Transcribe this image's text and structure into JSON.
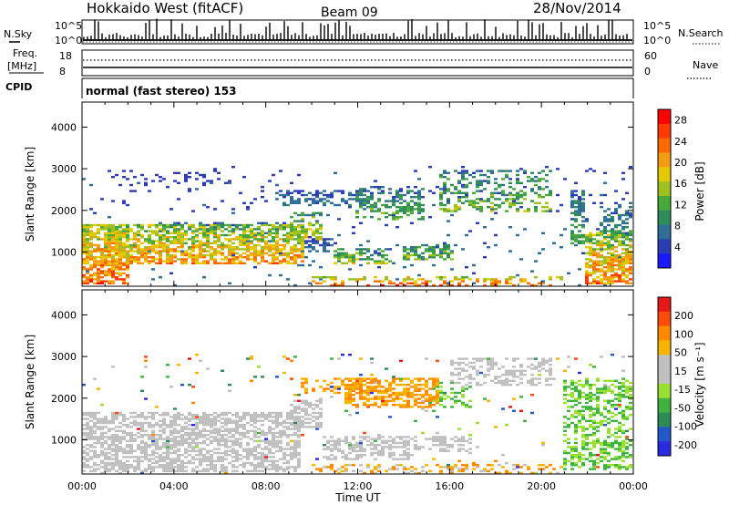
{
  "header": {
    "site": "Hokkaido West (fitACF)",
    "beam": "Beam 09",
    "date": "28/Nov/2014"
  },
  "strip": {
    "nsky_label": "N.Sky",
    "nsky_ticks": [
      "10^5",
      "10^0"
    ],
    "nsearch_label": "N.Search",
    "nsearch_ticks": [
      "10^5",
      "10^0"
    ],
    "freq_label_1": "Freq.",
    "freq_label_2": "[MHz]",
    "freq_ticks": [
      "18",
      "8"
    ],
    "nave_label": "Nave",
    "nave_ticks": [
      "60",
      "0"
    ],
    "cpid_label": "CPID",
    "cpid_text": "normal (fast stereo) 153"
  },
  "colors": {
    "power": [
      "#1a1aff",
      "#2c3cb4",
      "#2f6e96",
      "#2f8c5a",
      "#49a83a",
      "#a0c020",
      "#e6c800",
      "#f39c12",
      "#ff6a00",
      "#ff3a00",
      "#ff0000"
    ],
    "velocity": [
      "#e61919",
      "#ff4b0a",
      "#ff8a00",
      "#f7b500",
      "#c0c0c0",
      "#c0c0c0",
      "#99e033",
      "#3fb33f",
      "#2e8b57",
      "#2457c8",
      "#2a2ae0"
    ]
  },
  "chart_data": [
    {
      "type": "heatmap",
      "panel": "power",
      "xlabel": "Time UT",
      "ylabel": "Slant Range [km]",
      "x_range_hours": [
        0,
        24
      ],
      "x_ticks": [
        "00:00",
        "04:00",
        "08:00",
        "12:00",
        "16:00",
        "20:00",
        "00:00"
      ],
      "ylim": [
        180,
        4600
      ],
      "y_ticks": [
        1000,
        2000,
        3000,
        4000
      ],
      "colorbar_label": "Power [dB]",
      "colorbar_ticks": [
        4,
        8,
        12,
        16,
        20,
        24,
        28
      ],
      "colorbar_range": [
        0,
        30
      ],
      "regions": [
        {
          "t0": 0.0,
          "t1": 2.0,
          "r0": 250,
          "r1": 1700,
          "v0": 10,
          "v1": 28,
          "d": 0.7
        },
        {
          "t0": 1.0,
          "t1": 9.7,
          "r0": 700,
          "r1": 1700,
          "v0": 8,
          "v1": 26,
          "d": 0.65
        },
        {
          "t0": 3.0,
          "t1": 9.5,
          "r0": 1500,
          "r1": 1750,
          "v0": 3,
          "v1": 12,
          "d": 0.35
        },
        {
          "t0": 9.0,
          "t1": 10.5,
          "r0": 1300,
          "r1": 2000,
          "v0": 5,
          "v1": 22,
          "d": 0.5
        },
        {
          "t0": 9.5,
          "t1": 11.0,
          "r0": 1000,
          "r1": 1400,
          "v0": 3,
          "v1": 8,
          "d": 0.5
        },
        {
          "t0": 11.0,
          "t1": 13.5,
          "r0": 700,
          "r1": 1100,
          "v0": 3,
          "v1": 20,
          "d": 0.55
        },
        {
          "t0": 12.0,
          "t1": 15.0,
          "r0": 1800,
          "r1": 2600,
          "v0": 3,
          "v1": 16,
          "d": 0.45
        },
        {
          "t0": 14.0,
          "t1": 16.2,
          "r0": 800,
          "r1": 1200,
          "v0": 4,
          "v1": 18,
          "d": 0.5
        },
        {
          "t0": 8.5,
          "t1": 12.5,
          "r0": 2100,
          "r1": 2500,
          "v0": 3,
          "v1": 10,
          "d": 0.4
        },
        {
          "t0": 15.5,
          "t1": 20.5,
          "r0": 2000,
          "r1": 3000,
          "v0": 3,
          "v1": 18,
          "d": 0.35
        },
        {
          "t0": 1.0,
          "t1": 6.5,
          "r0": 2600,
          "r1": 3000,
          "v0": 3,
          "v1": 6,
          "d": 0.18
        },
        {
          "t0": 10.0,
          "t1": 21.0,
          "r0": 200,
          "r1": 400,
          "v0": 12,
          "v1": 28,
          "d": 0.35
        },
        {
          "t0": 21.3,
          "t1": 22.0,
          "r0": 1200,
          "r1": 2500,
          "v0": 4,
          "v1": 14,
          "d": 0.5
        },
        {
          "t0": 22.0,
          "t1": 24.0,
          "r0": 250,
          "r1": 1500,
          "v0": 8,
          "v1": 28,
          "d": 0.7
        },
        {
          "t0": 22.5,
          "t1": 24.0,
          "r0": 1500,
          "r1": 2200,
          "v0": 3,
          "v1": 12,
          "d": 0.35
        },
        {
          "t0": 0.0,
          "t1": 24.0,
          "r0": 200,
          "r1": 3100,
          "v0": 3,
          "v1": 8,
          "d": 0.03
        }
      ]
    },
    {
      "type": "heatmap",
      "panel": "velocity",
      "xlabel": "Time UT",
      "ylabel": "Slant Range [km]",
      "x_range_hours": [
        0,
        24
      ],
      "x_ticks": [
        "00:00",
        "04:00",
        "08:00",
        "12:00",
        "16:00",
        "20:00",
        "00:00"
      ],
      "ylim": [
        180,
        4600
      ],
      "y_ticks": [
        1000,
        2000,
        3000,
        4000
      ],
      "colorbar_label": "Velocity [m s⁻¹]",
      "colorbar_ticks": [
        200,
        100,
        50,
        15,
        -15,
        -50,
        -100,
        -200
      ],
      "regions": [
        {
          "t0": 0.0,
          "t1": 9.5,
          "r0": 250,
          "r1": 1700,
          "k0": 4,
          "k1": 5,
          "d": 0.6
        },
        {
          "t0": 9.0,
          "t1": 10.5,
          "r0": 1300,
          "r1": 2000,
          "k0": 4,
          "k1": 5,
          "d": 0.5
        },
        {
          "t0": 10.5,
          "t1": 14.5,
          "r0": 500,
          "r1": 1100,
          "k0": 4,
          "k1": 5,
          "d": 0.5
        },
        {
          "t0": 14.5,
          "t1": 17.0,
          "r0": 700,
          "r1": 1100,
          "k0": 4,
          "k1": 5,
          "d": 0.45
        },
        {
          "t0": 11.5,
          "t1": 15.5,
          "r0": 1800,
          "r1": 2500,
          "k0": 2,
          "k1": 3,
          "d": 0.55
        },
        {
          "t0": 9.5,
          "t1": 12.5,
          "r0": 2100,
          "r1": 2500,
          "k0": 2,
          "k1": 3,
          "d": 0.35
        },
        {
          "t0": 16.0,
          "t1": 20.5,
          "r0": 2300,
          "r1": 3000,
          "k0": 4,
          "k1": 5,
          "d": 0.4
        },
        {
          "t0": 15.0,
          "t1": 17.0,
          "r0": 1800,
          "r1": 2400,
          "k0": 6,
          "k1": 7,
          "d": 0.3
        },
        {
          "t0": 21.0,
          "t1": 24.0,
          "r0": 300,
          "r1": 2500,
          "k0": 6,
          "k1": 7,
          "d": 0.45
        },
        {
          "t0": 10.0,
          "t1": 21.0,
          "r0": 200,
          "r1": 400,
          "k0": 2,
          "k1": 4,
          "d": 0.3
        },
        {
          "t0": 0.0,
          "t1": 24.0,
          "r0": 200,
          "r1": 3100,
          "k0": 0,
          "k1": 10,
          "d": 0.025
        }
      ]
    }
  ]
}
